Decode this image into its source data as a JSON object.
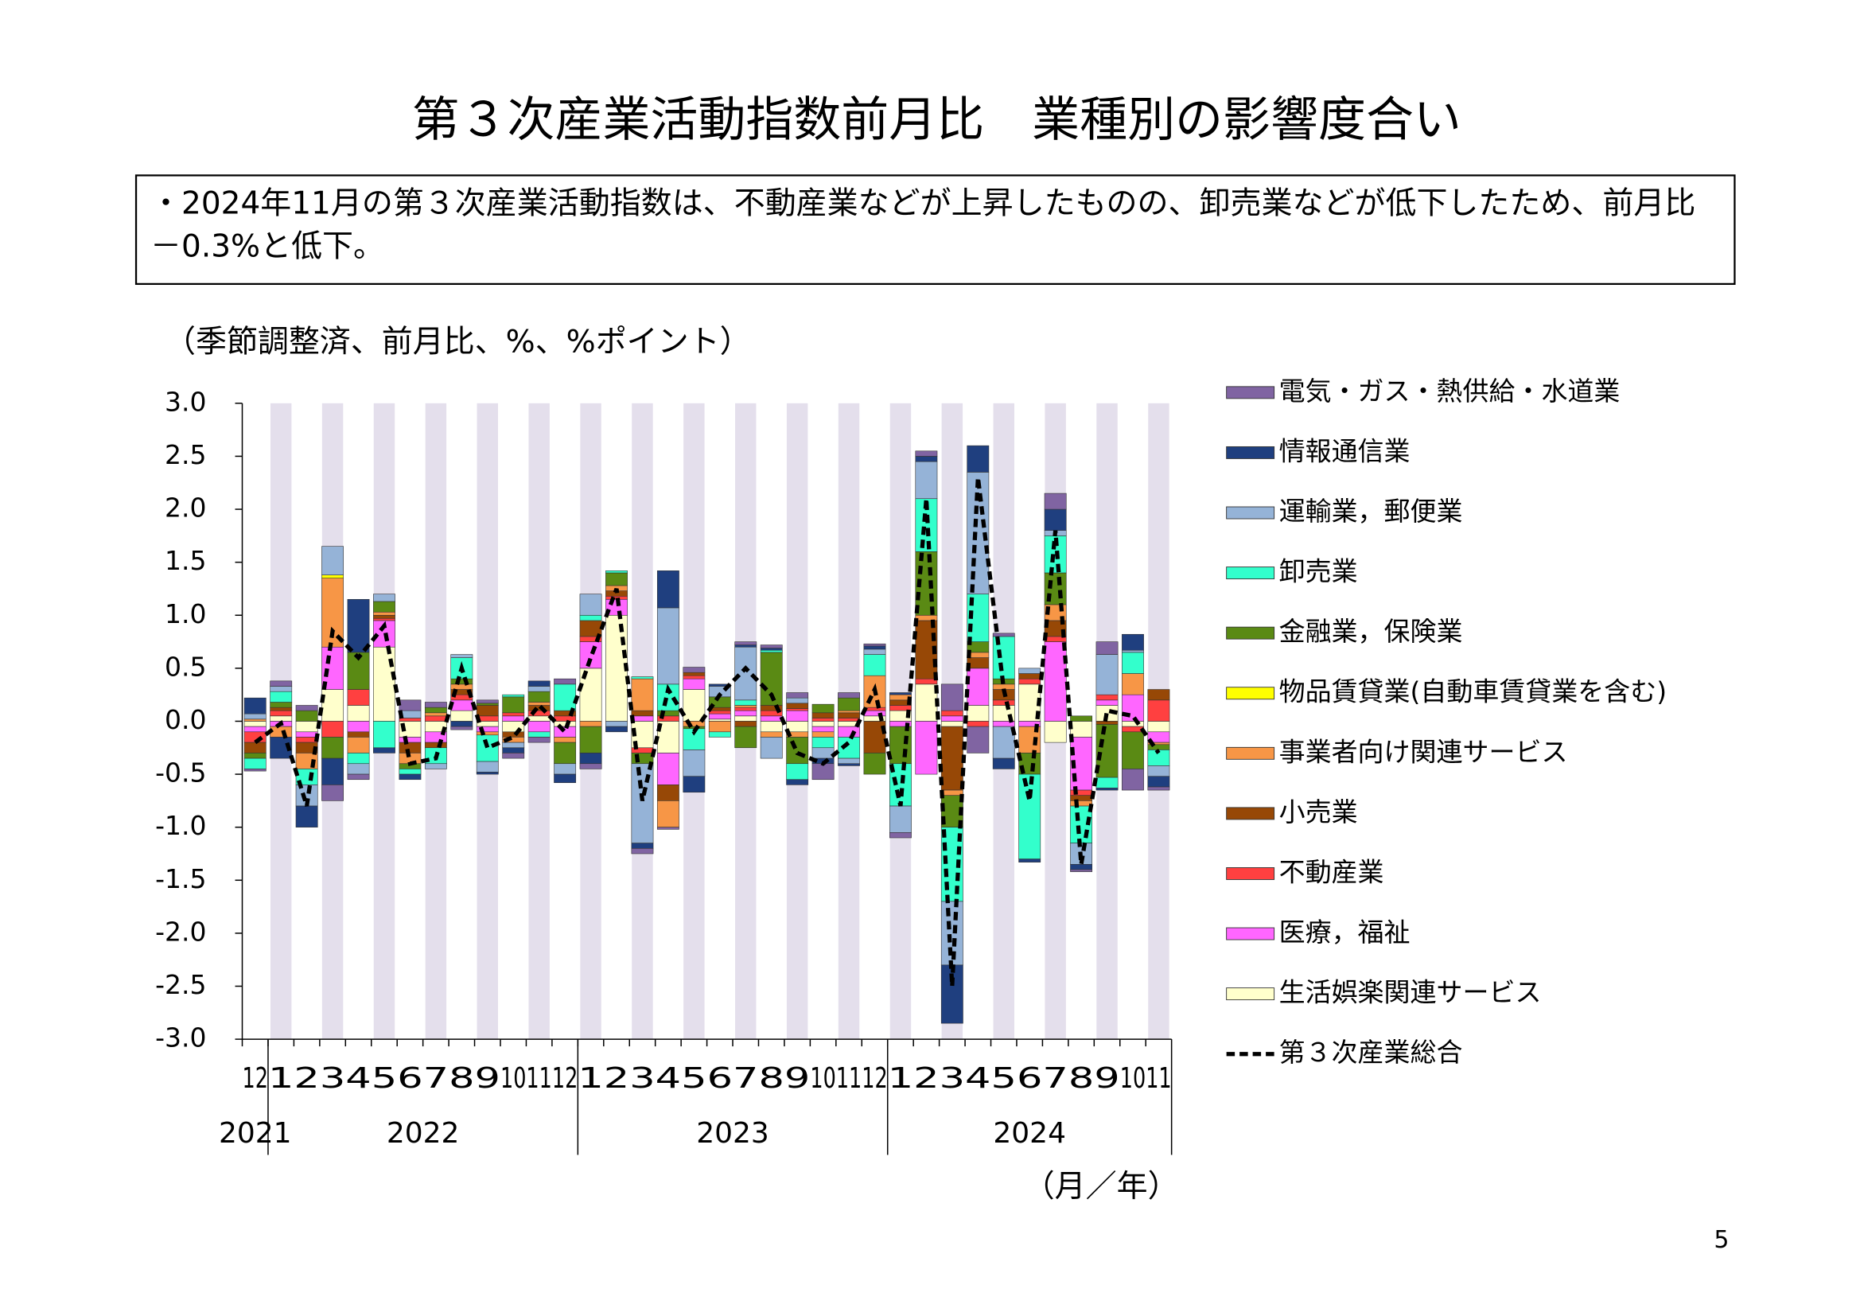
{
  "chart_data": {
    "type": "bar",
    "stacked": true,
    "title": "第３次産業活動指数前月比　業種別の影響度合い",
    "subtitle": "・2024年11月の第３次産業活動指数は、不動産業などが上昇したものの、卸売業などが低下したため、前月比－0.3%と低下。",
    "y_label": "（季節調整済、前月比、%、%ポイント）",
    "x_label": "（月／年）",
    "page_number": "5",
    "categories": [
      "12",
      "1",
      "2",
      "3",
      "4",
      "5",
      "6",
      "7",
      "8",
      "9",
      "10",
      "11",
      "12",
      "1",
      "2",
      "3",
      "4",
      "5",
      "6",
      "7",
      "8",
      "9",
      "10",
      "11",
      "12",
      "1",
      "2",
      "3",
      "4",
      "5",
      "6",
      "7",
      "8",
      "9",
      "10",
      "11"
    ],
    "years": [
      "2021",
      "2022",
      "2023",
      "2024"
    ],
    "ylim": [
      -3,
      3
    ],
    "yticks": [
      {
        "value": 3,
        "label": "3.0"
      },
      2.5,
      {
        "value": 2,
        "label": "2.0"
      },
      1.5,
      {
        "value": 1,
        "label": "1.0"
      },
      0.5,
      {
        "value": 0,
        "label": "0.0"
      },
      -0.5,
      {
        "value": -1,
        "label": "-1.0"
      },
      -1.5,
      {
        "value": -2,
        "label": "-2.0"
      },
      -2.5,
      {
        "value": -3,
        "label": "-3.0"
      }
    ],
    "band_shading": "#e4dfec",
    "series": [
      {
        "name": "生活娯楽関連サービス",
        "color": "#ffffcc",
        "values": [
          -0.05,
          0.05,
          -0.1,
          0.3,
          0.15,
          0.7,
          -0.15,
          -0.1,
          0.1,
          -0.05,
          -0.1,
          0.05,
          -0.05,
          0.5,
          1.0,
          -0.25,
          -0.3,
          0.3,
          0.02,
          0.05,
          -0.1,
          -0.1,
          -0.05,
          -0.05,
          0.05,
          0.1,
          0.35,
          -0.05,
          0.15,
          0.15,
          0.35,
          -0.2,
          -0.15,
          0.15,
          -0.05,
          -0.1
        ]
      },
      {
        "name": "医療，福祉",
        "color": "#ff66ff",
        "values": [
          -0.05,
          -0.05,
          -0.05,
          0.4,
          -0.1,
          0.25,
          -0.05,
          -0.1,
          0.1,
          -0.05,
          0.05,
          -0.1,
          -0.1,
          0.25,
          0.15,
          0.05,
          -0.3,
          0.1,
          0.05,
          0.05,
          0.05,
          0.1,
          -0.05,
          -0.1,
          0.05,
          -0.05,
          -0.5,
          0.05,
          0.35,
          -0.05,
          -0.05,
          0.75,
          -0.5,
          0.05,
          0.25,
          -0.1
        ]
      },
      {
        "name": "不動産業",
        "color": "#ff4040",
        "values": [
          -0.1,
          0.05,
          -0.05,
          -0.15,
          0.15,
          0.02,
          0.03,
          0.05,
          0.05,
          0.05,
          0.03,
          0.05,
          0.05,
          0.05,
          0.03,
          -0.05,
          0.05,
          0.03,
          0.03,
          0.03,
          0.05,
          0.02,
          0.03,
          0.03,
          0.03,
          0.05,
          0.05,
          0.05,
          -0.05,
          0.05,
          0.05,
          0.05,
          -0.05,
          0.05,
          -0.05,
          0.2
        ]
      },
      {
        "name": "小売業",
        "color": "#974806",
        "values": [
          -0.1,
          0.03,
          -0.1,
          0,
          -0.05,
          0.03,
          -0.1,
          -0.05,
          0.05,
          0.1,
          -0.05,
          0.05,
          0.05,
          0.15,
          0.05,
          0.05,
          -0.15,
          0.03,
          0.03,
          -0.05,
          0.05,
          0.05,
          0.05,
          0.05,
          -0.3,
          0.05,
          0.55,
          -0.6,
          0.1,
          0.1,
          0.05,
          0.15,
          -0.05,
          -0.03,
          0,
          0.1
        ]
      },
      {
        "name": "事業者向け関連サービス",
        "color": "#f79646",
        "values": [
          0.02,
          -0.1,
          -0.15,
          0.65,
          -0.15,
          0.03,
          -0.1,
          0.03,
          0.05,
          -0.03,
          -0.05,
          0.03,
          -0.05,
          -0.05,
          0.05,
          0.3,
          -0.25,
          -0.05,
          -0.1,
          0.02,
          -0.05,
          -0.05,
          -0.05,
          0.02,
          0.3,
          0.05,
          0.05,
          -0.05,
          0.05,
          0.05,
          -0.25,
          0.15,
          -0.05,
          0,
          0.2,
          -0.02
        ]
      },
      {
        "name": "物品賃貸業(自動車賃貸業を含む)",
        "color": "#ffff00",
        "values": [
          0,
          0,
          0,
          0.03,
          0,
          0,
          0,
          0,
          0,
          0,
          0,
          0,
          0,
          0,
          0,
          0,
          0,
          0,
          0,
          0,
          0,
          0,
          0,
          0,
          0,
          0,
          0,
          0,
          0,
          0,
          0,
          0,
          0,
          0,
          0,
          0
        ]
      },
      {
        "name": "金融業，保険業",
        "color": "#5a8a14",
        "values": [
          -0.05,
          0.05,
          0.1,
          -0.2,
          0.35,
          0.1,
          -0.05,
          0.05,
          0.05,
          0.02,
          0.15,
          0.1,
          -0.2,
          -0.25,
          0.12,
          -0.1,
          0.05,
          -0.02,
          0.1,
          -0.2,
          0.5,
          -0.25,
          0.08,
          0.12,
          -0.2,
          -0.35,
          0.6,
          -0.3,
          0.1,
          0.05,
          -0.2,
          0.3,
          0.05,
          -0.5,
          -0.35,
          -0.05
        ]
      },
      {
        "name": "卸売業",
        "color": "#33ffcc",
        "values": [
          -0.1,
          0.1,
          -0.15,
          0,
          -0.1,
          -0.25,
          -0.05,
          -0.15,
          0.2,
          -0.25,
          0.02,
          -0.05,
          0.25,
          0.05,
          0.02,
          0.02,
          0.25,
          -0.2,
          -0.05,
          0.05,
          0.02,
          -0.15,
          -0.1,
          -0.2,
          0.2,
          -0.4,
          0.5,
          -0.7,
          0.45,
          0.4,
          -0.8,
          0.35,
          -0.35,
          -0.1,
          0.2,
          -0.15
        ]
      },
      {
        "name": "運輸業，郵便業",
        "color": "#95b3d7",
        "values": [
          0.05,
          0.05,
          -0.2,
          0.27,
          -0.1,
          0.07,
          0.07,
          -0.05,
          0.03,
          -0.1,
          -0.05,
          0.05,
          -0.1,
          0.2,
          -0.05,
          -0.75,
          0.72,
          -0.25,
          0.1,
          0.5,
          -0.2,
          0.05,
          -0.1,
          -0.05,
          0.05,
          -0.25,
          0.35,
          -0.6,
          1.15,
          -0.3,
          0.05,
          0.05,
          -0.2,
          0.38,
          0.02,
          -0.1
        ]
      },
      {
        "name": "情報通信業",
        "color": "#1f3f7f",
        "values": [
          0.15,
          -0.2,
          -0.2,
          -0.25,
          0.5,
          -0.05,
          -0.05,
          0,
          -0.05,
          -0.02,
          -0.05,
          0.05,
          -0.08,
          -0.1,
          -0.05,
          -0.05,
          0.35,
          -0.15,
          0.02,
          0.02,
          0.02,
          -0.05,
          -0.05,
          -0.02,
          0.03,
          0.02,
          0.05,
          -0.55,
          0.25,
          -0.1,
          -0.03,
          0.2,
          -0.05,
          -0.02,
          0.15,
          -0.1
        ]
      },
      {
        "name": "電気・ガス・熱供給・水道業",
        "color": "#8064a2",
        "values": [
          -0.02,
          0.05,
          0.05,
          -0.15,
          -0.05,
          0,
          0.1,
          0.05,
          -0.03,
          0.03,
          -0.05,
          -0.05,
          0.05,
          -0.05,
          0,
          -0.05,
          -0.02,
          0.05,
          0,
          0.03,
          0.03,
          0.05,
          -0.15,
          0.05,
          0.02,
          -0.05,
          0.05,
          0.25,
          -0.25,
          0.03,
          0,
          0.15,
          -0.02,
          0.12,
          -0.2,
          -0.03
        ]
      }
    ],
    "line_series": {
      "name": "第３次産業総合",
      "color": "#000000",
      "values": [
        -0.2,
        -0.02,
        -0.8,
        0.85,
        0.6,
        0.9,
        -0.4,
        -0.35,
        0.5,
        -0.25,
        -0.15,
        0.15,
        -0.1,
        0.6,
        1.25,
        -0.75,
        0.3,
        -0.1,
        0.25,
        0.5,
        0.25,
        -0.3,
        -0.4,
        -0.2,
        0.3,
        -0.8,
        2.1,
        -2.5,
        2.3,
        0.3,
        -0.75,
        1.8,
        -1.35,
        0.1,
        0.05,
        -0.3
      ]
    }
  }
}
